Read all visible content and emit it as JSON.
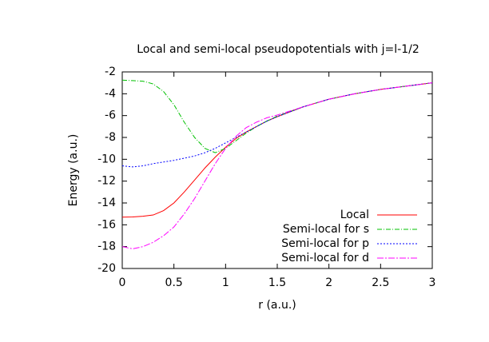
{
  "chart_data": {
    "type": "line",
    "title": "Local and semi-local pseudopotentials with j=l-1/2",
    "x_label": "r (a.u.)",
    "y_label": "Energy (a.u.)",
    "x": [
      0,
      0.1,
      0.2,
      0.3,
      0.4,
      0.5,
      0.6,
      0.7,
      0.8,
      0.9,
      1.0,
      1.1,
      1.2,
      1.3,
      1.4,
      1.5,
      1.75,
      2,
      2.25,
      2.5,
      2.75,
      3
    ],
    "series": [
      {
        "name": "Local",
        "color": "#ff0000",
        "dash": "none",
        "values": [
          -15.3,
          -15.28,
          -15.22,
          -15.1,
          -14.7,
          -14.0,
          -13.0,
          -11.9,
          -10.8,
          -9.8,
          -8.9,
          -8.1,
          -7.5,
          -7.0,
          -6.5,
          -6.1,
          -5.2,
          -4.5,
          -4.0,
          -3.6,
          -3.3,
          -3.0
        ]
      },
      {
        "name": "Semi-local for s",
        "color": "#00c000",
        "dash": "6 2 1 2",
        "values": [
          -2.75,
          -2.8,
          -2.85,
          -3.1,
          -3.8,
          -5.0,
          -6.6,
          -8.0,
          -9.0,
          -9.4,
          -9.0,
          -8.3,
          -7.6,
          -7.0,
          -6.5,
          -6.05,
          -5.2,
          -4.5,
          -4.0,
          -3.6,
          -3.3,
          -3.0
        ]
      },
      {
        "name": "Semi-local for p",
        "color": "#0000ff",
        "dash": "2 2",
        "values": [
          -10.6,
          -10.7,
          -10.6,
          -10.4,
          -10.25,
          -10.1,
          -9.9,
          -9.7,
          -9.4,
          -9.0,
          -8.5,
          -8.0,
          -7.5,
          -7.0,
          -6.5,
          -6.1,
          -5.2,
          -4.5,
          -4.0,
          -3.6,
          -3.3,
          -3.0
        ]
      },
      {
        "name": "Semi-local for d",
        "color": "#ff00ff",
        "dash": "8 2 2 2",
        "values": [
          -18.0,
          -18.2,
          -18.0,
          -17.6,
          -17.0,
          -16.2,
          -15.0,
          -13.6,
          -12.0,
          -10.4,
          -9.0,
          -7.9,
          -7.1,
          -6.6,
          -6.2,
          -5.95,
          -5.2,
          -4.5,
          -4.0,
          -3.6,
          -3.3,
          -3.0
        ]
      }
    ],
    "xlim": [
      0,
      3
    ],
    "xticks": [
      0,
      0.5,
      1,
      1.5,
      2,
      2.5,
      3
    ],
    "ylim": [
      -20,
      -2
    ],
    "yticks": [
      -20,
      -18,
      -16,
      -14,
      -12,
      -10,
      -8,
      -6,
      -4,
      -2
    ],
    "legend": "bottom-right",
    "grid": false
  }
}
